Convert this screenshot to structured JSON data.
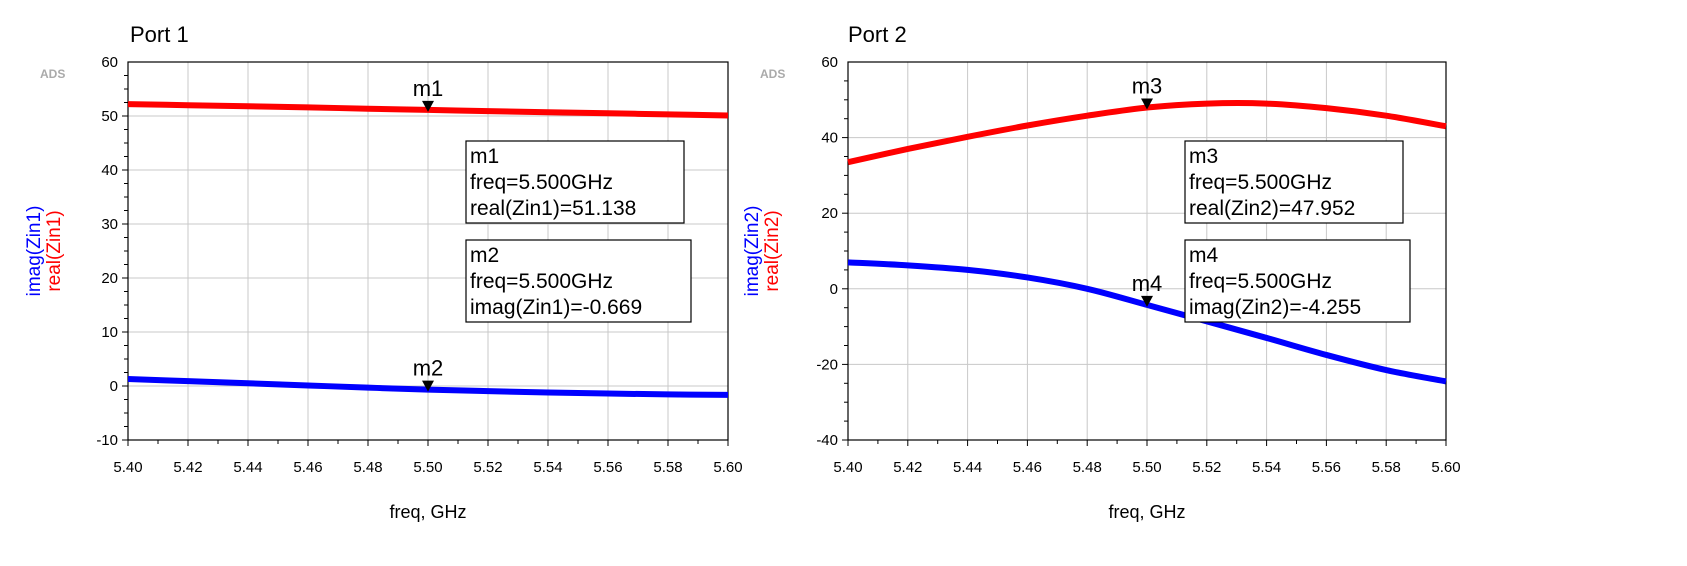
{
  "chart_data": [
    {
      "type": "line",
      "title": "Port 1",
      "watermark": "ADS",
      "xlabel": "freq, GHz",
      "ylabel_parts": [
        {
          "text": "imag(Zin1)",
          "color": "#0000ff"
        },
        {
          "text": "real(Zin1)",
          "color": "#ff0000"
        }
      ],
      "xlim": [
        5.4,
        5.6
      ],
      "ylim": [
        -10,
        60
      ],
      "xticks": [
        "5.40",
        "5.42",
        "5.44",
        "5.46",
        "5.48",
        "5.50",
        "5.52",
        "5.54",
        "5.56",
        "5.58",
        "5.60"
      ],
      "yticks": [
        "-10",
        "0",
        "10",
        "20",
        "30",
        "40",
        "50",
        "60"
      ],
      "grid": true,
      "series": [
        {
          "color": "#ff0000",
          "x": [
            5.4,
            5.42,
            5.44,
            5.46,
            5.48,
            5.5,
            5.52,
            5.54,
            5.56,
            5.58,
            5.6
          ],
          "y": [
            52.2,
            52.0,
            51.8,
            51.6,
            51.35,
            51.138,
            50.9,
            50.7,
            50.5,
            50.3,
            50.1
          ]
        },
        {
          "color": "#0000ff",
          "x": [
            5.4,
            5.42,
            5.44,
            5.46,
            5.48,
            5.5,
            5.52,
            5.54,
            5.56,
            5.58,
            5.6
          ],
          "y": [
            1.3,
            0.9,
            0.5,
            0.1,
            -0.3,
            -0.669,
            -0.95,
            -1.2,
            -1.4,
            -1.55,
            -1.65
          ]
        }
      ],
      "markers": [
        {
          "name": "m1",
          "x": 5.5,
          "y": 51.138,
          "lines": [
            "m1",
            "freq=5.500GHz",
            "real(Zin1)=51.138"
          ]
        },
        {
          "name": "m2",
          "x": 5.5,
          "y": -0.669,
          "lines": [
            "m2",
            "freq=5.500GHz",
            "imag(Zin1)=-0.669"
          ]
        }
      ]
    },
    {
      "type": "line",
      "title": "Port 2",
      "watermark": "ADS",
      "xlabel": "freq, GHz",
      "ylabel_parts": [
        {
          "text": "imag(Zin2)",
          "color": "#0000ff"
        },
        {
          "text": "real(Zin2)",
          "color": "#ff0000"
        }
      ],
      "xlim": [
        5.4,
        5.6
      ],
      "ylim": [
        -40,
        60
      ],
      "xticks": [
        "5.40",
        "5.42",
        "5.44",
        "5.46",
        "5.48",
        "5.50",
        "5.52",
        "5.54",
        "5.56",
        "5.58",
        "5.60"
      ],
      "yticks": [
        "-40",
        "-20",
        "0",
        "20",
        "40",
        "60"
      ],
      "grid": true,
      "series": [
        {
          "color": "#ff0000",
          "x": [
            5.4,
            5.42,
            5.44,
            5.46,
            5.48,
            5.5,
            5.52,
            5.54,
            5.56,
            5.58,
            5.6
          ],
          "y": [
            33.5,
            37.0,
            40.2,
            43.2,
            45.8,
            47.952,
            49.0,
            49.0,
            47.8,
            45.8,
            43.0
          ]
        },
        {
          "color": "#0000ff",
          "x": [
            5.4,
            5.42,
            5.44,
            5.46,
            5.48,
            5.5,
            5.52,
            5.54,
            5.56,
            5.58,
            5.6
          ],
          "y": [
            7.0,
            6.2,
            5.0,
            3.0,
            0.0,
            -4.255,
            -8.6,
            -13.0,
            -17.5,
            -21.5,
            -24.5
          ]
        }
      ],
      "markers": [
        {
          "name": "m3",
          "x": 5.5,
          "y": 47.952,
          "lines": [
            "m3",
            "freq=5.500GHz",
            "real(Zin2)=47.952"
          ]
        },
        {
          "name": "m4",
          "x": 5.5,
          "y": -4.255,
          "lines": [
            "m4",
            "freq=5.500GHz",
            "imag(Zin2)=-4.255"
          ]
        }
      ]
    }
  ]
}
